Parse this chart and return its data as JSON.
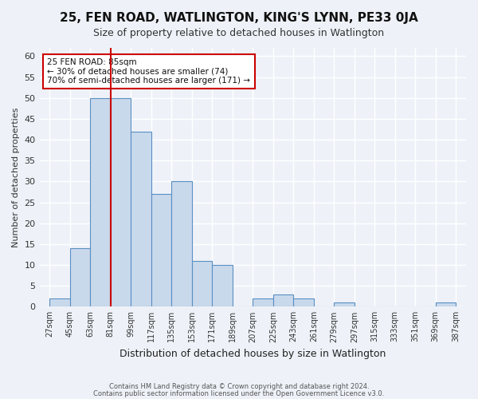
{
  "title": "25, FEN ROAD, WATLINGTON, KING'S LYNN, PE33 0JA",
  "subtitle": "Size of property relative to detached houses in Watlington",
  "xlabel": "Distribution of detached houses by size in Watlington",
  "ylabel": "Number of detached properties",
  "bin_edges": [
    27,
    45,
    63,
    81,
    99,
    117,
    135,
    153,
    171,
    189,
    207,
    225,
    243,
    261,
    279,
    297,
    315,
    333,
    351,
    369,
    387
  ],
  "bin_labels": [
    "27sqm",
    "45sqm",
    "63sqm",
    "81sqm",
    "99sqm",
    "117sqm",
    "135sqm",
    "153sqm",
    "171sqm",
    "189sqm",
    "207sqm",
    "225sqm",
    "243sqm",
    "261sqm",
    "279sqm",
    "297sqm",
    "315sqm",
    "333sqm",
    "351sqm",
    "369sqm",
    "387sqm"
  ],
  "bar_values": [
    2,
    14,
    50,
    50,
    42,
    27,
    30,
    11,
    10,
    0,
    2,
    3,
    2,
    0,
    1,
    0,
    0,
    0,
    0,
    1
  ],
  "bar_color": "#c9d9ec",
  "bar_edge_color": "#5a8fc3",
  "vline_index": 3,
  "vline_color": "#cc0000",
  "ylim": [
    0,
    62
  ],
  "yticks": [
    0,
    5,
    10,
    15,
    20,
    25,
    30,
    35,
    40,
    45,
    50,
    55,
    60
  ],
  "annotation_title": "25 FEN ROAD: 85sqm",
  "annotation_line1": "← 30% of detached houses are smaller (74)",
  "annotation_line2": "70% of semi-detached houses are larger (171) →",
  "annotation_box_color": "#cc0000",
  "footer_line1": "Contains HM Land Registry data © Crown copyright and database right 2024.",
  "footer_line2": "Contains public sector information licensed under the Open Government Licence v3.0.",
  "background_color": "#eef2f8",
  "grid_color": "#ffffff"
}
